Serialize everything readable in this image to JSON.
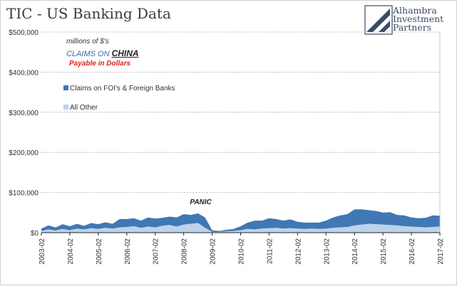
{
  "header": {
    "title": "TIC - US Banking Data",
    "logo_lines": [
      "Alhambra",
      "Investment",
      "Partners"
    ]
  },
  "annotations": {
    "units_note": "millions of $'s",
    "claims_on": "CLAIMS ON",
    "country": "CHINA",
    "payable_note": "Payable in Dollars",
    "event_label": "PANIC"
  },
  "colors": {
    "foreign_banks": "#3f78b4",
    "all_other": "#bdd3ea",
    "text": "#333333",
    "claims_on_text": "#2f6db5",
    "payable_text": "#e02020",
    "grid": "#a8a8a8"
  },
  "chart_data": {
    "type": "area",
    "title": "TIC - US Banking Data",
    "stacked": true,
    "x_start": "2003-02",
    "x_end": "2017-02",
    "tick_labels": [
      "2003-02",
      "2004-02",
      "2005-02",
      "2006-02",
      "2007-02",
      "2008-02",
      "2009-02",
      "2010-02",
      "2011-02",
      "2012-02",
      "2013-02",
      "2014-02",
      "2015-02",
      "2016-02",
      "2017-02"
    ],
    "ylim": [
      0,
      500000
    ],
    "yticks": [
      0,
      100000,
      200000,
      300000,
      400000,
      500000
    ],
    "ytick_labels": [
      "$0",
      "$100,000",
      "$200,000",
      "$300,000",
      "$400,000",
      "$500,000"
    ],
    "grid": "horizontal dashed",
    "legend_position": "upper-left",
    "series": [
      {
        "name": "All Other",
        "color": "#bdd3ea",
        "x": [
          "2003-02",
          "2003-05",
          "2003-08",
          "2003-11",
          "2004-02",
          "2004-05",
          "2004-08",
          "2004-11",
          "2005-02",
          "2005-05",
          "2005-08",
          "2005-11",
          "2006-02",
          "2006-05",
          "2006-08",
          "2006-11",
          "2007-02",
          "2007-05",
          "2007-08",
          "2007-11",
          "2008-02",
          "2008-05",
          "2008-08",
          "2008-11",
          "2009-02",
          "2009-05",
          "2009-08",
          "2009-11",
          "2010-02",
          "2010-05",
          "2010-08",
          "2010-11",
          "2011-02",
          "2011-05",
          "2011-08",
          "2011-11",
          "2012-02",
          "2012-05",
          "2012-08",
          "2012-11",
          "2013-02",
          "2013-05",
          "2013-08",
          "2013-11",
          "2014-02",
          "2014-05",
          "2014-08",
          "2014-11",
          "2015-02",
          "2015-05",
          "2015-08",
          "2015-11",
          "2016-02",
          "2016-05",
          "2016-08",
          "2016-11",
          "2017-02"
        ],
        "values": [
          4000,
          8000,
          5000,
          9000,
          6000,
          10000,
          8000,
          11000,
          9000,
          12000,
          10000,
          13000,
          14000,
          16000,
          12000,
          15000,
          13000,
          17000,
          19000,
          15000,
          20000,
          22000,
          24000,
          12000,
          2000,
          1500,
          3000,
          4000,
          6000,
          9000,
          8000,
          10000,
          11000,
          12000,
          10000,
          11000,
          10000,
          9000,
          10000,
          9000,
          10000,
          12000,
          13000,
          14000,
          18000,
          20000,
          22000,
          21000,
          20000,
          19000,
          18000,
          16000,
          15000,
          14000,
          13000,
          14000,
          15000
        ]
      },
      {
        "name": "Claims on FOI's & Foreign Banks",
        "color": "#3f78b4",
        "x": [
          "2003-02",
          "2003-05",
          "2003-08",
          "2003-11",
          "2004-02",
          "2004-05",
          "2004-08",
          "2004-11",
          "2005-02",
          "2005-05",
          "2005-08",
          "2005-11",
          "2006-02",
          "2006-05",
          "2006-08",
          "2006-11",
          "2007-02",
          "2007-05",
          "2007-08",
          "2007-11",
          "2008-02",
          "2008-05",
          "2008-08",
          "2008-11",
          "2009-02",
          "2009-05",
          "2009-08",
          "2009-11",
          "2010-02",
          "2010-05",
          "2010-08",
          "2010-11",
          "2011-02",
          "2011-05",
          "2011-08",
          "2011-11",
          "2012-02",
          "2012-05",
          "2012-08",
          "2012-11",
          "2013-02",
          "2013-05",
          "2013-08",
          "2013-11",
          "2014-02",
          "2014-05",
          "2014-08",
          "2014-11",
          "2015-02",
          "2015-05",
          "2015-08",
          "2015-11",
          "2016-02",
          "2016-05",
          "2016-08",
          "2016-11",
          "2017-02"
        ],
        "values": [
          6000,
          10000,
          8000,
          12000,
          10000,
          12000,
          9000,
          13000,
          12000,
          14000,
          12000,
          21000,
          20000,
          20000,
          18000,
          23000,
          22000,
          20000,
          21000,
          23000,
          26000,
          22000,
          24000,
          26000,
          4000,
          2500,
          4000,
          5000,
          10000,
          16000,
          22000,
          20000,
          25000,
          22000,
          20000,
          22000,
          17000,
          16000,
          15000,
          16000,
          20000,
          26000,
          30000,
          32000,
          40000,
          38000,
          34000,
          33000,
          30000,
          32000,
          26000,
          27000,
          23000,
          22000,
          24000,
          29000,
          27000
        ]
      }
    ]
  }
}
